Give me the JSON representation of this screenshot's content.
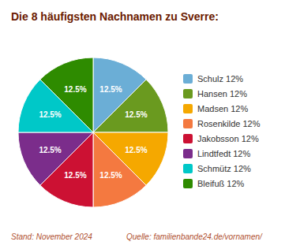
{
  "chart_data": {
    "type": "pie",
    "title": "Die 8 häufigsten Nachnamen zu Sverre:",
    "categories": [
      "Schulz 12%",
      "Hansen 12%",
      "Madsen 12%",
      "Rosenkilde 12%",
      "Jakobsson 12%",
      "Lindtfedt 12%",
      "Schmütz 12%",
      "Bleifuß 12%"
    ],
    "values": [
      12.5,
      12.5,
      12.5,
      12.5,
      12.5,
      12.5,
      12.5,
      12.5
    ],
    "value_labels": [
      "12.5%",
      "12.5%",
      "12.5%",
      "12.5%",
      "12.5%",
      "12.5%",
      "12.5%",
      "12.5%"
    ],
    "colors": [
      "#6baed6",
      "#6a9a1f",
      "#f5a800",
      "#f47940",
      "#cc1133",
      "#7b2d8b",
      "#00c8c8",
      "#2e8b00"
    ],
    "data_labels": true,
    "legend": "right",
    "annotations": [
      "Stand: November 2024",
      "Quelle: familienbande24.de/vornamen/"
    ]
  }
}
